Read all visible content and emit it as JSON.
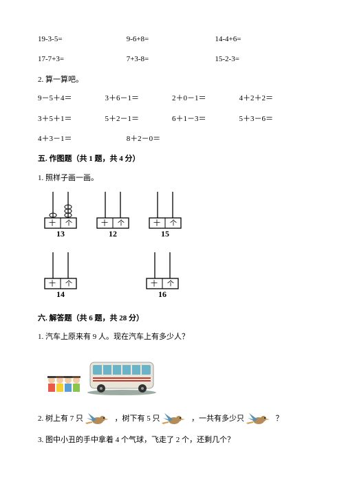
{
  "row1": {
    "a": "19-3-5=",
    "b": "9-6+8=",
    "c": "14-4+6="
  },
  "row2": {
    "a": "17-7+3=",
    "b": "7+3-8=",
    "c": "15-2-3="
  },
  "calc_label": "2. 算一算吧。",
  "row3": {
    "a": "9－5＋4＝",
    "b": "3＋6－1＝",
    "c": "2＋0－1＝",
    "d": "4＋2＋2＝"
  },
  "row4": {
    "a": "3＋5＋1＝",
    "b": "5＋2－1＝",
    "c": "6＋1－3＝",
    "d": "5＋3－6＝"
  },
  "row5": {
    "a": "4＋3－1＝",
    "b": "8＋2－0＝"
  },
  "section5": "五. 作图题（共 1 题，共 4 分）",
  "s5_q1": "1. 照样子画一画。",
  "abacus": {
    "labels": [
      "十",
      "个"
    ],
    "nums": [
      "13",
      "12",
      "15",
      "14",
      "16"
    ],
    "beads": [
      [
        1,
        3
      ],
      [
        0,
        0
      ],
      [
        0,
        0
      ],
      [
        0,
        0
      ],
      [
        0,
        0
      ]
    ]
  },
  "section6": "六. 解答题（共 6 题，共 28 分）",
  "s6_q1": "1. 汽车上原来有 9 人。现在汽车上有多少人？",
  "s6_q2": {
    "pre": "2. 树上有 7 只",
    "mid": "，树下有 5 只",
    "post": "，一共有多少只",
    "end": "？"
  },
  "s6_q3": "3. 图中小丑的手中拿着 4 个气球，飞走了 2 个，还剩几个？",
  "colors": {
    "bus_body": "#e8e4d8",
    "bus_window": "#6ab3c9",
    "bus_shadow": "#5a7560",
    "kid1": "#e85a4a",
    "kid2": "#f5d030",
    "kid3": "#5a9fd4",
    "kid4": "#8ac451",
    "bird_body": "#b38c5a",
    "bird_wing": "#5a8fb3",
    "bird_tail": "#d4a050"
  }
}
